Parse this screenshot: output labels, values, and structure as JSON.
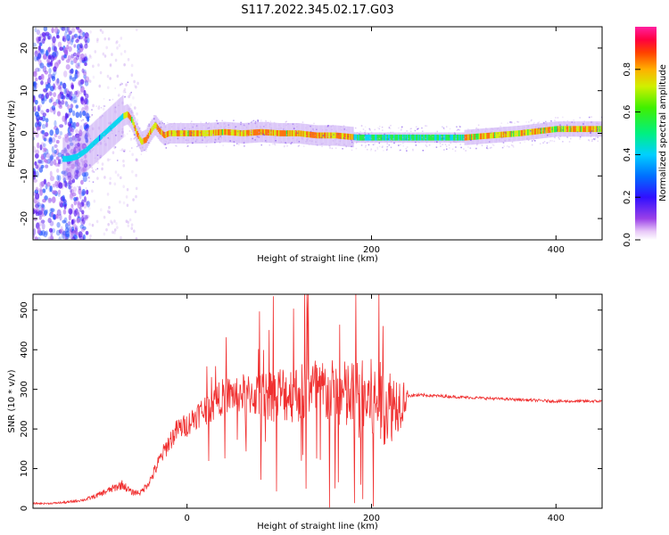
{
  "title": "S117.2022.345.02.17.G03",
  "chart_data": [
    {
      "type": "heatmap",
      "xlabel": "Height of straight line (km)",
      "ylabel": "Frequency (Hz)",
      "xlim": [
        -167,
        450
      ],
      "ylim": [
        -25,
        25
      ],
      "xticks": [
        0,
        200,
        400
      ],
      "yticks": [
        -20,
        -10,
        0,
        10,
        20
      ],
      "colorbar": {
        "label": "Normalized spectral amplitude",
        "range": [
          0,
          1
        ],
        "ticks": [
          "0.0",
          "0.2",
          "0.4",
          "0.6",
          "0.8"
        ],
        "colormap": "rainbow (white-violet-blue-cyan-green-yellow-orange-red-magenta)"
      },
      "ridge": {
        "x": [
          -130,
          -120,
          -110,
          -100,
          -95,
          -90,
          -85,
          -80,
          -75,
          -70,
          -65,
          -60,
          -55,
          -50,
          -45,
          -40,
          -35,
          -30,
          -25,
          -20,
          -10,
          0,
          20,
          40,
          60,
          80,
          100,
          120,
          140,
          160,
          175,
          185,
          250,
          300,
          330,
          360,
          380,
          400,
          420,
          450
        ],
        "y": [
          -6,
          -5.5,
          -4,
          -2,
          -1,
          0,
          1,
          2,
          3,
          4,
          4.5,
          3,
          0,
          -2,
          -1.5,
          0.5,
          2,
          0.5,
          -0.5,
          0,
          0,
          0,
          0,
          0.3,
          0,
          0.3,
          0,
          0,
          -0.5,
          -0.5,
          -0.8,
          -1,
          -1,
          -1,
          -0.5,
          0,
          0.5,
          1,
          1,
          1
        ]
      }
    },
    {
      "type": "line",
      "xlabel": "Height of straight line (km)",
      "ylabel": "SNR (10 * v/v)",
      "xlim": [
        -167,
        450
      ],
      "ylim": [
        0,
        540
      ],
      "xticks": [
        0,
        200,
        400
      ],
      "yticks": [
        0,
        100,
        200,
        300,
        400,
        500
      ],
      "series": [
        {
          "color": "#f03030",
          "x": [
            -167,
            -150,
            -130,
            -110,
            -100,
            -90,
            -80,
            -70,
            -60,
            -50,
            -40,
            -30,
            -20,
            -10,
            0,
            10,
            20,
            30,
            40,
            60,
            80,
            100,
            120,
            140,
            160,
            180,
            200,
            220,
            235,
            240,
            260,
            300,
            350,
            400,
            450
          ],
          "y": [
            12,
            12,
            15,
            22,
            30,
            40,
            50,
            60,
            40,
            40,
            70,
            120,
            165,
            200,
            210,
            235,
            250,
            265,
            285,
            290,
            285,
            290,
            290,
            300,
            290,
            275,
            270,
            260,
            275,
            285,
            285,
            280,
            275,
            270,
            270
          ],
          "spread": [
            4,
            4,
            6,
            8,
            12,
            15,
            20,
            25,
            15,
            15,
            25,
            40,
            50,
            60,
            60,
            70,
            80,
            90,
            90,
            100,
            120,
            150,
            150,
            170,
            170,
            200,
            220,
            200,
            120,
            10,
            8,
            7,
            7,
            7,
            7
          ]
        }
      ]
    }
  ]
}
